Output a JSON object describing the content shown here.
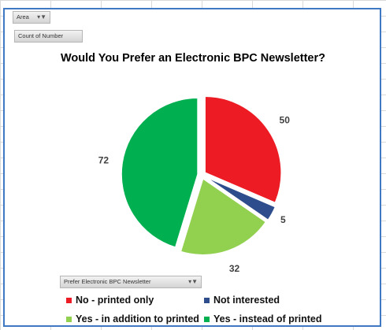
{
  "filters": {
    "area_label": "Area",
    "value_field_label": "Count of Number",
    "axis_field_label": "Prefer Electronic BPC Newsletter"
  },
  "chart_data": {
    "type": "pie",
    "title": "Would You Prefer an Electronic BPC Newsletter?",
    "labels": [
      "No - printed only",
      "Not interested",
      "Yes - in addition to printed",
      "Yes - instead of printed"
    ],
    "values": [
      50,
      5,
      32,
      72
    ],
    "colors": [
      "#ed1c24",
      "#2e4d8c",
      "#92d050",
      "#00b050"
    ],
    "data_labels": true,
    "exploded": true,
    "legend_position": "bottom"
  }
}
